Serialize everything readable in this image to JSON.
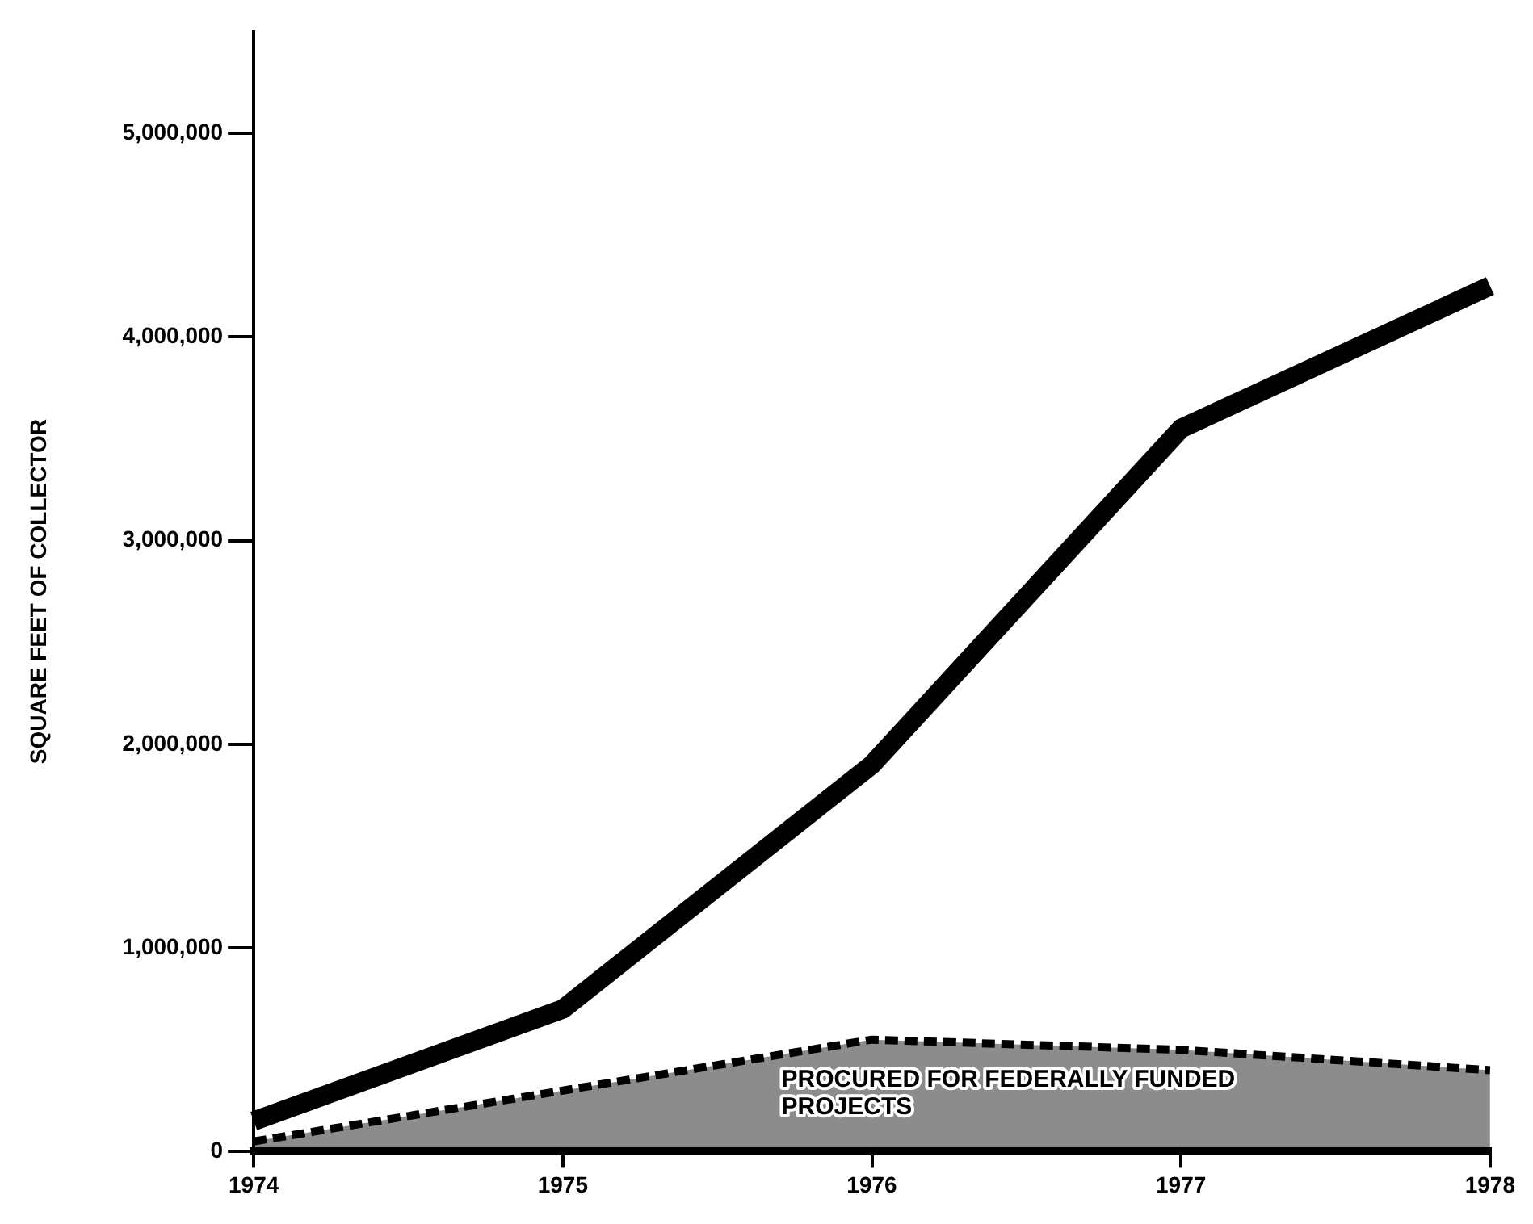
{
  "chart_data": {
    "type": "line",
    "ylabel": "SQUARE FEET OF COLLECTOR",
    "categories": [
      "1974",
      "1975",
      "1976",
      "1977",
      "1978"
    ],
    "series": [
      {
        "type": "line",
        "color": "#000000",
        "values": [
          150000,
          700000,
          1900000,
          3550000,
          4250000
        ]
      },
      {
        "type": "area",
        "name": "PROCURED FOR FEDERALLY FUNDED PROJECTS",
        "color": "#000000",
        "line_style": "dashed",
        "values": [
          50000,
          300000,
          550000,
          500000,
          400000
        ]
      }
    ],
    "ylim": [
      0,
      5500000
    ],
    "yticks": [
      0,
      {
        "value": 1000000,
        "label": "1,000,000"
      },
      {
        "value": 2000000,
        "label": "2,000,000"
      },
      {
        "value": 3000000,
        "label": "3,000,000"
      },
      {
        "value": 4000000,
        "label": "4,000,000"
      },
      {
        "value": 5000000,
        "label": "5,000,000"
      }
    ],
    "grid": false,
    "legend": false
  }
}
